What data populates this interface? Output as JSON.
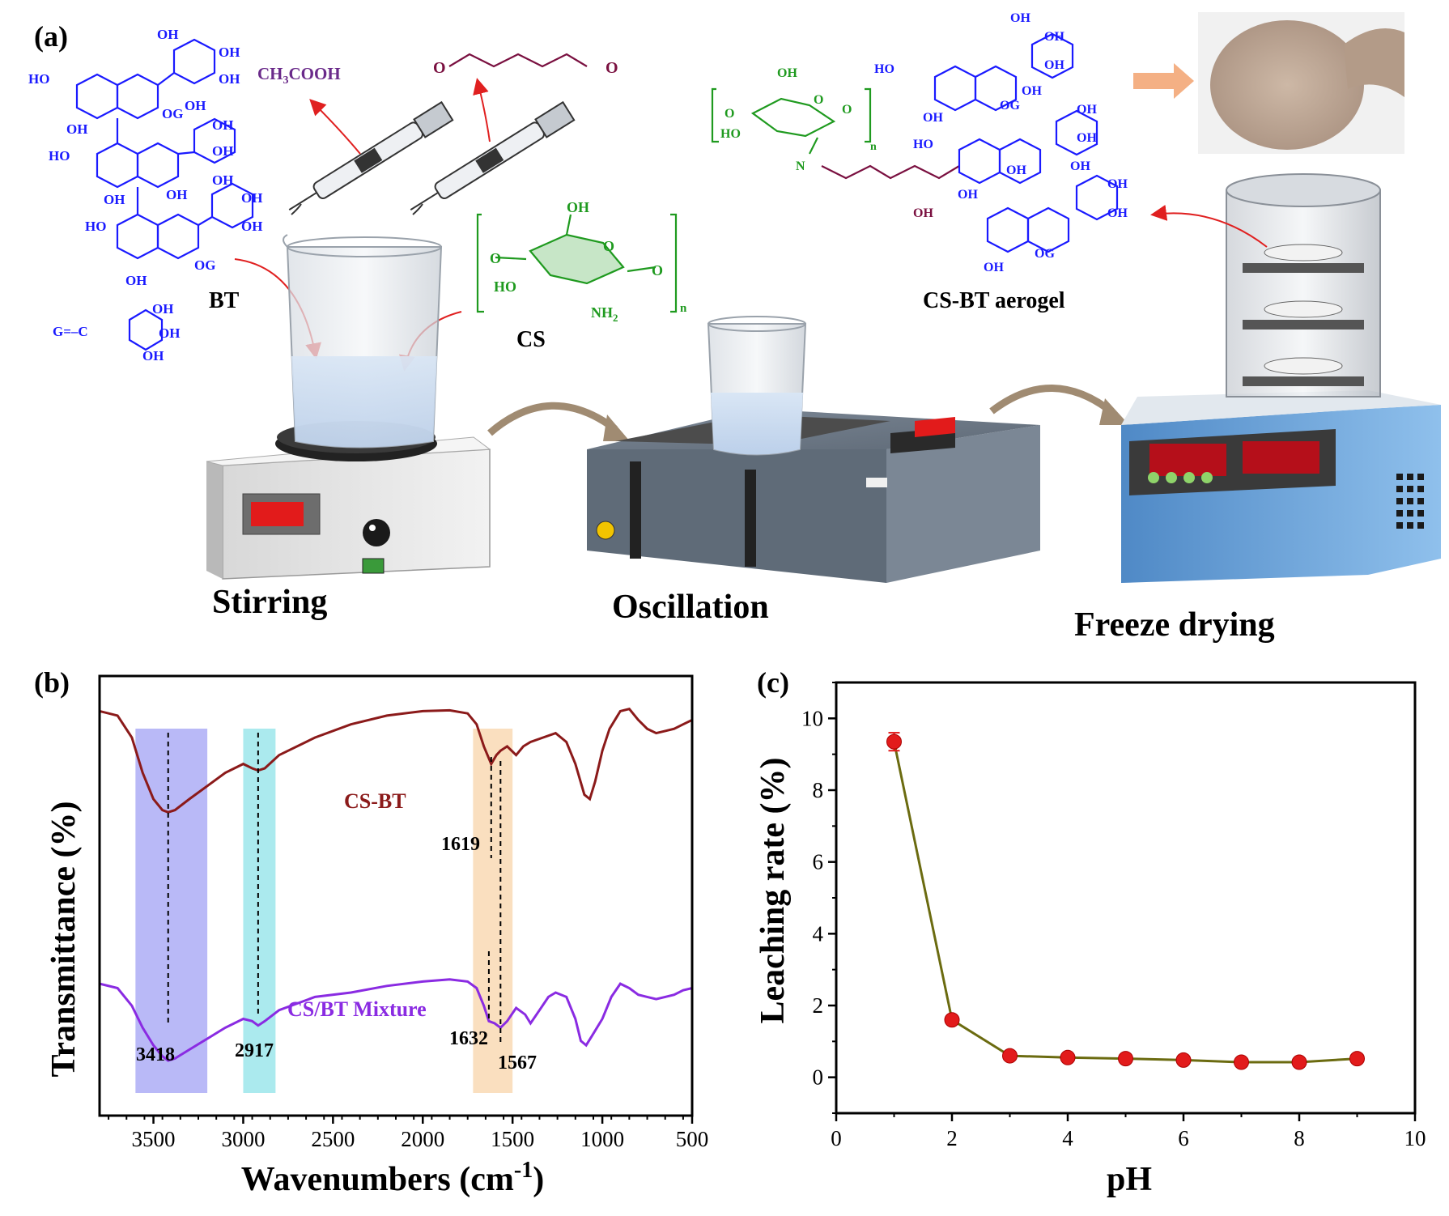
{
  "panel_a": {
    "label": "(a)",
    "bt_label": "BT",
    "cs_label": "CS",
    "aerogel_label": "CS-BT aerogel",
    "acetic_acid": "CH3COOH",
    "step_stirring": "Stirring",
    "step_oscillation": "Oscillation",
    "step_freeze": "Freeze drying",
    "subscript_n": "n",
    "chem_labels": {
      "oh": "OH",
      "ho": "HO",
      "og": "OG",
      "o": "O",
      "n": "N",
      "g_carbonyl": "G=–C",
      "nh2": "NH2"
    }
  },
  "chart_data": [
    {
      "panel_label": "(b)",
      "type": "line",
      "xlabel": "Wavenumbers (cm-1)",
      "ylabel": "Transmittance (%)",
      "xlim": [
        3800,
        500
      ],
      "x_ticks": [
        3500,
        3000,
        2500,
        2000,
        1500,
        1000,
        500
      ],
      "x_reversed": true,
      "y_ticks_shown": false,
      "series": [
        {
          "name": "CS-BT",
          "color": "#8b1a1a",
          "points": [
            [
              3800,
              0.92
            ],
            [
              3700,
              0.91
            ],
            [
              3620,
              0.86
            ],
            [
              3560,
              0.78
            ],
            [
              3500,
              0.72
            ],
            [
              3450,
              0.695
            ],
            [
              3418,
              0.69
            ],
            [
              3380,
              0.695
            ],
            [
              3300,
              0.72
            ],
            [
              3200,
              0.75
            ],
            [
              3100,
              0.78
            ],
            [
              3000,
              0.8
            ],
            [
              2950,
              0.79
            ],
            [
              2917,
              0.785
            ],
            [
              2880,
              0.79
            ],
            [
              2800,
              0.82
            ],
            [
              2600,
              0.86
            ],
            [
              2400,
              0.89
            ],
            [
              2200,
              0.91
            ],
            [
              2000,
              0.92
            ],
            [
              1850,
              0.922
            ],
            [
              1750,
              0.915
            ],
            [
              1700,
              0.89
            ],
            [
              1660,
              0.84
            ],
            [
              1619,
              0.8
            ],
            [
              1590,
              0.82
            ],
            [
              1567,
              0.83
            ],
            [
              1530,
              0.84
            ],
            [
              1480,
              0.82
            ],
            [
              1440,
              0.84
            ],
            [
              1400,
              0.85
            ],
            [
              1330,
              0.86
            ],
            [
              1260,
              0.87
            ],
            [
              1200,
              0.85
            ],
            [
              1150,
              0.8
            ],
            [
              1100,
              0.73
            ],
            [
              1070,
              0.72
            ],
            [
              1040,
              0.76
            ],
            [
              1000,
              0.83
            ],
            [
              960,
              0.88
            ],
            [
              900,
              0.92
            ],
            [
              850,
              0.925
            ],
            [
              800,
              0.9
            ],
            [
              750,
              0.88
            ],
            [
              700,
              0.87
            ],
            [
              650,
              0.875
            ],
            [
              600,
              0.88
            ],
            [
              550,
              0.89
            ],
            [
              500,
              0.9
            ]
          ]
        },
        {
          "name": "CS/BT Mixture",
          "color": "#8a2be2",
          "points": [
            [
              3800,
              0.3
            ],
            [
              3700,
              0.29
            ],
            [
              3620,
              0.25
            ],
            [
              3560,
              0.2
            ],
            [
              3500,
              0.16
            ],
            [
              3450,
              0.135
            ],
            [
              3418,
              0.125
            ],
            [
              3380,
              0.13
            ],
            [
              3300,
              0.15
            ],
            [
              3200,
              0.175
            ],
            [
              3100,
              0.2
            ],
            [
              3000,
              0.22
            ],
            [
              2950,
              0.215
            ],
            [
              2917,
              0.205
            ],
            [
              2880,
              0.215
            ],
            [
              2800,
              0.24
            ],
            [
              2600,
              0.27
            ],
            [
              2400,
              0.28
            ],
            [
              2200,
              0.295
            ],
            [
              2000,
              0.305
            ],
            [
              1850,
              0.31
            ],
            [
              1750,
              0.305
            ],
            [
              1700,
              0.29
            ],
            [
              1660,
              0.25
            ],
            [
              1632,
              0.215
            ],
            [
              1600,
              0.21
            ],
            [
              1567,
              0.2
            ],
            [
              1530,
              0.215
            ],
            [
              1480,
              0.245
            ],
            [
              1430,
              0.23
            ],
            [
              1400,
              0.21
            ],
            [
              1350,
              0.24
            ],
            [
              1300,
              0.27
            ],
            [
              1260,
              0.28
            ],
            [
              1200,
              0.27
            ],
            [
              1150,
              0.22
            ],
            [
              1120,
              0.17
            ],
            [
              1090,
              0.16
            ],
            [
              1060,
              0.18
            ],
            [
              1000,
              0.22
            ],
            [
              950,
              0.27
            ],
            [
              900,
              0.3
            ],
            [
              850,
              0.29
            ],
            [
              800,
              0.275
            ],
            [
              750,
              0.27
            ],
            [
              700,
              0.265
            ],
            [
              650,
              0.27
            ],
            [
              600,
              0.275
            ],
            [
              550,
              0.285
            ],
            [
              500,
              0.29
            ]
          ]
        }
      ],
      "bands": [
        {
          "x_range": [
            3600,
            3200
          ],
          "color": "#8080f0"
        },
        {
          "x_range": [
            3000,
            2820
          ],
          "color": "#66d9e0"
        },
        {
          "x_range": [
            1720,
            1500
          ],
          "color": "#f5c48a"
        }
      ],
      "annotations": [
        "3418",
        "2917",
        "1619",
        "1632",
        "1567"
      ],
      "annotation_x": [
        3418,
        2917,
        1619,
        1632,
        1567
      ]
    },
    {
      "panel_label": "(c)",
      "type": "scatter",
      "xlabel": "pH",
      "ylabel": "Leaching rate (%)",
      "xlim": [
        0,
        10
      ],
      "ylim": [
        -1,
        11
      ],
      "x_ticks": [
        0,
        2,
        4,
        6,
        8,
        10
      ],
      "y_ticks": [
        0,
        2,
        4,
        6,
        8,
        10
      ],
      "x": [
        1,
        2,
        3,
        4,
        5,
        6,
        7,
        8,
        9
      ],
      "series": [
        {
          "values": [
            9.35,
            1.6,
            0.6,
            0.55,
            0.52,
            0.48,
            0.42,
            0.42,
            0.52
          ],
          "error": [
            0.25,
            0.05,
            0.05,
            0.05,
            0.05,
            0.05,
            0.05,
            0.05,
            0.05
          ],
          "marker_color": "#e21b1b",
          "line_color": "#6b6b10"
        }
      ]
    }
  ]
}
